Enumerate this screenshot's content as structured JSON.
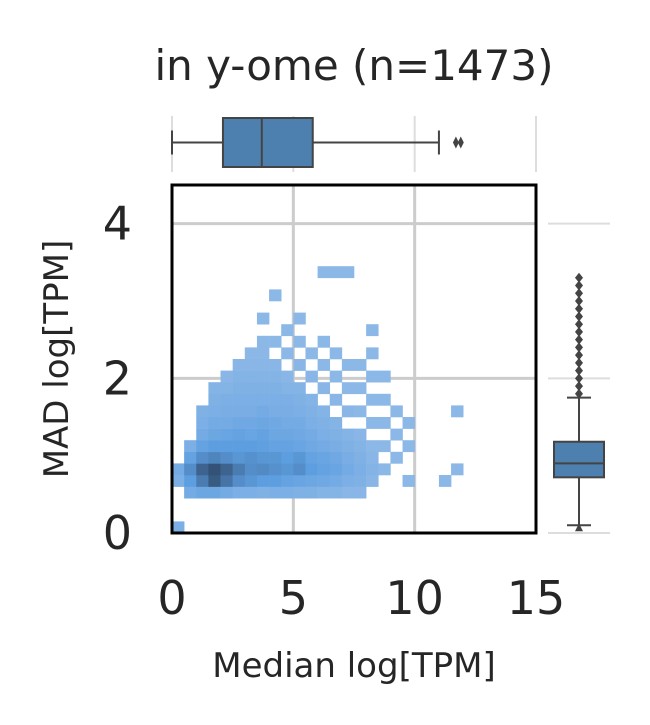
{
  "chart_data": {
    "type": "heatmap",
    "title": "in y-ome (n=1473)",
    "xlabel": "Median log[TPM]",
    "ylabel": "MAD log[TPM]",
    "xlim": [
      0,
      15
    ],
    "ylim": [
      0,
      4.5
    ],
    "xticks": [
      "0",
      "5",
      "10",
      "15"
    ],
    "yticks": [
      "0",
      "2",
      "4"
    ],
    "grid": true,
    "marginal_x_boxplot": {
      "q1": 2.1,
      "median": 3.7,
      "q3": 5.8,
      "whisker_low": 0.0,
      "whisker_high": 11.0,
      "outliers": [
        11.7,
        11.9
      ]
    },
    "marginal_y_boxplot": {
      "q1": 0.72,
      "median": 0.9,
      "q3": 1.18,
      "whisker_low": 0.1,
      "whisker_high": 1.75,
      "outliers": [
        1.8,
        1.9,
        2.0,
        2.1,
        2.2,
        2.3,
        2.4,
        2.5,
        2.6,
        2.7,
        2.8,
        2.9,
        3.0,
        3.1,
        3.2,
        3.3
      ]
    },
    "bin_width_x": 0.5,
    "bin_height_y": 0.15,
    "color_scale": [
      "#abc9ec",
      "#5d9ee0",
      "#2f4a6b"
    ],
    "bins": [
      [
        0.0,
        0.0,
        0.3
      ],
      [
        0.0,
        0.6,
        0.3
      ],
      [
        0.0,
        0.75,
        0.35
      ],
      [
        0.5,
        0.45,
        0.35
      ],
      [
        0.5,
        0.6,
        0.5
      ],
      [
        0.5,
        0.75,
        0.6
      ],
      [
        0.5,
        0.9,
        0.45
      ],
      [
        0.5,
        1.05,
        0.3
      ],
      [
        1.0,
        0.45,
        0.4
      ],
      [
        1.0,
        0.6,
        0.7
      ],
      [
        1.0,
        0.75,
        0.85
      ],
      [
        1.0,
        0.9,
        0.6
      ],
      [
        1.0,
        1.05,
        0.45
      ],
      [
        1.0,
        1.2,
        0.35
      ],
      [
        1.0,
        1.35,
        0.3
      ],
      [
        1.0,
        1.5,
        0.28
      ],
      [
        1.5,
        0.45,
        0.4
      ],
      [
        1.5,
        0.6,
        0.9
      ],
      [
        1.5,
        0.75,
        0.95
      ],
      [
        1.5,
        0.9,
        0.65
      ],
      [
        1.5,
        1.05,
        0.5
      ],
      [
        1.5,
        1.2,
        0.4
      ],
      [
        1.5,
        1.35,
        0.35
      ],
      [
        1.5,
        1.5,
        0.3
      ],
      [
        1.5,
        1.65,
        0.28
      ],
      [
        1.5,
        1.8,
        0.25
      ],
      [
        2.0,
        0.45,
        0.35
      ],
      [
        2.0,
        0.6,
        0.75
      ],
      [
        2.0,
        0.75,
        0.85
      ],
      [
        2.0,
        0.9,
        0.6
      ],
      [
        2.0,
        1.05,
        0.5
      ],
      [
        2.0,
        1.2,
        0.42
      ],
      [
        2.0,
        1.35,
        0.35
      ],
      [
        2.0,
        1.5,
        0.32
      ],
      [
        2.0,
        1.65,
        0.3
      ],
      [
        2.0,
        1.8,
        0.25
      ],
      [
        2.0,
        1.95,
        0.22
      ],
      [
        2.5,
        0.45,
        0.3
      ],
      [
        2.5,
        0.6,
        0.6
      ],
      [
        2.5,
        0.75,
        0.7
      ],
      [
        2.5,
        0.9,
        0.55
      ],
      [
        2.5,
        1.05,
        0.5
      ],
      [
        2.5,
        1.2,
        0.45
      ],
      [
        2.5,
        1.35,
        0.38
      ],
      [
        2.5,
        1.5,
        0.32
      ],
      [
        2.5,
        1.65,
        0.3
      ],
      [
        2.5,
        1.8,
        0.28
      ],
      [
        2.5,
        1.95,
        0.25
      ],
      [
        2.5,
        2.1,
        0.22
      ],
      [
        3.0,
        0.45,
        0.3
      ],
      [
        3.0,
        0.6,
        0.55
      ],
      [
        3.0,
        0.75,
        0.6
      ],
      [
        3.0,
        0.9,
        0.58
      ],
      [
        3.0,
        1.05,
        0.5
      ],
      [
        3.0,
        1.2,
        0.42
      ],
      [
        3.0,
        1.35,
        0.38
      ],
      [
        3.0,
        1.5,
        0.32
      ],
      [
        3.0,
        1.65,
        0.3
      ],
      [
        3.0,
        1.8,
        0.28
      ],
      [
        3.0,
        1.95,
        0.25
      ],
      [
        3.0,
        2.1,
        0.22
      ],
      [
        3.0,
        2.25,
        0.2
      ],
      [
        3.5,
        0.45,
        0.28
      ],
      [
        3.5,
        0.6,
        0.5
      ],
      [
        3.5,
        0.75,
        0.62
      ],
      [
        3.5,
        0.9,
        0.55
      ],
      [
        3.5,
        1.05,
        0.48
      ],
      [
        3.5,
        1.2,
        0.45
      ],
      [
        3.5,
        1.35,
        0.4
      ],
      [
        3.5,
        1.5,
        0.35
      ],
      [
        3.5,
        1.65,
        0.3
      ],
      [
        3.5,
        1.8,
        0.28
      ],
      [
        3.5,
        1.95,
        0.25
      ],
      [
        3.5,
        2.1,
        0.22
      ],
      [
        3.5,
        2.25,
        0.2
      ],
      [
        3.5,
        2.4,
        0.2
      ],
      [
        3.5,
        2.7,
        0.2
      ],
      [
        4.0,
        0.45,
        0.3
      ],
      [
        4.0,
        0.6,
        0.5
      ],
      [
        4.0,
        0.75,
        0.58
      ],
      [
        4.0,
        0.9,
        0.55
      ],
      [
        4.0,
        1.05,
        0.45
      ],
      [
        4.0,
        1.2,
        0.4
      ],
      [
        4.0,
        1.35,
        0.38
      ],
      [
        4.0,
        1.5,
        0.32
      ],
      [
        4.0,
        1.65,
        0.3
      ],
      [
        4.0,
        1.8,
        0.28
      ],
      [
        4.0,
        1.95,
        0.25
      ],
      [
        4.0,
        2.1,
        0.22
      ],
      [
        4.0,
        2.4,
        0.2
      ],
      [
        4.0,
        3.0,
        0.2
      ],
      [
        4.5,
        0.45,
        0.3
      ],
      [
        4.5,
        0.6,
        0.45
      ],
      [
        4.5,
        0.75,
        0.55
      ],
      [
        4.5,
        0.9,
        0.5
      ],
      [
        4.5,
        1.05,
        0.45
      ],
      [
        4.5,
        1.2,
        0.4
      ],
      [
        4.5,
        1.35,
        0.35
      ],
      [
        4.5,
        1.5,
        0.32
      ],
      [
        4.5,
        1.65,
        0.3
      ],
      [
        4.5,
        1.8,
        0.25
      ],
      [
        4.5,
        1.95,
        0.22
      ],
      [
        4.5,
        2.25,
        0.2
      ],
      [
        4.5,
        2.55,
        0.2
      ],
      [
        5.0,
        0.45,
        0.28
      ],
      [
        5.0,
        0.6,
        0.42
      ],
      [
        5.0,
        0.75,
        0.6
      ],
      [
        5.0,
        0.9,
        0.55
      ],
      [
        5.0,
        1.05,
        0.42
      ],
      [
        5.0,
        1.2,
        0.38
      ],
      [
        5.0,
        1.35,
        0.35
      ],
      [
        5.0,
        1.5,
        0.3
      ],
      [
        5.0,
        1.65,
        0.28
      ],
      [
        5.0,
        1.8,
        0.25
      ],
      [
        5.0,
        2.1,
        0.22
      ],
      [
        5.0,
        2.4,
        0.2
      ],
      [
        5.0,
        2.7,
        0.2
      ],
      [
        5.5,
        0.45,
        0.28
      ],
      [
        5.5,
        0.6,
        0.4
      ],
      [
        5.5,
        0.75,
        0.5
      ],
      [
        5.5,
        0.9,
        0.45
      ],
      [
        5.5,
        1.05,
        0.38
      ],
      [
        5.5,
        1.2,
        0.35
      ],
      [
        5.5,
        1.35,
        0.3
      ],
      [
        5.5,
        1.5,
        0.28
      ],
      [
        5.5,
        1.65,
        0.25
      ],
      [
        5.5,
        1.95,
        0.22
      ],
      [
        5.5,
        2.25,
        0.2
      ],
      [
        6.0,
        0.45,
        0.25
      ],
      [
        6.0,
        0.6,
        0.38
      ],
      [
        6.0,
        0.75,
        0.45
      ],
      [
        6.0,
        0.9,
        0.42
      ],
      [
        6.0,
        1.05,
        0.35
      ],
      [
        6.0,
        1.2,
        0.3
      ],
      [
        6.0,
        1.35,
        0.28
      ],
      [
        6.0,
        1.5,
        0.25
      ],
      [
        6.0,
        1.8,
        0.22
      ],
      [
        6.0,
        2.1,
        0.2
      ],
      [
        6.0,
        2.4,
        0.2
      ],
      [
        6.0,
        3.3,
        0.2
      ],
      [
        6.5,
        0.45,
        0.25
      ],
      [
        6.5,
        0.6,
        0.35
      ],
      [
        6.5,
        0.75,
        0.42
      ],
      [
        6.5,
        0.9,
        0.38
      ],
      [
        6.5,
        1.05,
        0.32
      ],
      [
        6.5,
        1.2,
        0.28
      ],
      [
        6.5,
        1.35,
        0.25
      ],
      [
        6.5,
        1.65,
        0.22
      ],
      [
        6.5,
        1.95,
        0.2
      ],
      [
        6.5,
        2.25,
        0.2
      ],
      [
        6.5,
        3.3,
        0.2
      ],
      [
        7.0,
        0.45,
        0.22
      ],
      [
        7.0,
        0.6,
        0.3
      ],
      [
        7.0,
        0.75,
        0.35
      ],
      [
        7.0,
        0.9,
        0.32
      ],
      [
        7.0,
        1.05,
        0.28
      ],
      [
        7.0,
        1.2,
        0.25
      ],
      [
        7.0,
        1.5,
        0.22
      ],
      [
        7.0,
        1.8,
        0.2
      ],
      [
        7.0,
        2.1,
        0.2
      ],
      [
        7.0,
        3.3,
        0.2
      ],
      [
        7.5,
        0.45,
        0.22
      ],
      [
        7.5,
        0.6,
        0.28
      ],
      [
        7.5,
        0.75,
        0.3
      ],
      [
        7.5,
        0.9,
        0.28
      ],
      [
        7.5,
        1.05,
        0.25
      ],
      [
        7.5,
        1.2,
        0.22
      ],
      [
        7.5,
        1.5,
        0.2
      ],
      [
        7.5,
        1.8,
        0.2
      ],
      [
        7.5,
        2.1,
        0.2
      ],
      [
        8.0,
        0.6,
        0.22
      ],
      [
        8.0,
        0.75,
        0.25
      ],
      [
        8.0,
        0.9,
        0.22
      ],
      [
        8.0,
        1.05,
        0.2
      ],
      [
        8.0,
        1.35,
        0.2
      ],
      [
        8.0,
        1.65,
        0.2
      ],
      [
        8.0,
        1.95,
        0.2
      ],
      [
        8.0,
        2.25,
        0.2
      ],
      [
        8.0,
        2.55,
        0.2
      ],
      [
        8.5,
        0.75,
        0.2
      ],
      [
        8.5,
        1.05,
        0.2
      ],
      [
        8.5,
        1.35,
        0.2
      ],
      [
        8.5,
        1.65,
        0.2
      ],
      [
        8.5,
        1.95,
        0.2
      ],
      [
        9.0,
        0.9,
        0.2
      ],
      [
        9.0,
        1.2,
        0.2
      ],
      [
        9.0,
        1.5,
        0.2
      ],
      [
        9.5,
        0.6,
        0.2
      ],
      [
        9.5,
        1.05,
        0.2
      ],
      [
        9.5,
        1.35,
        0.2
      ],
      [
        11.0,
        0.6,
        0.2
      ],
      [
        11.5,
        0.75,
        0.2
      ],
      [
        11.5,
        1.5,
        0.2
      ]
    ]
  }
}
